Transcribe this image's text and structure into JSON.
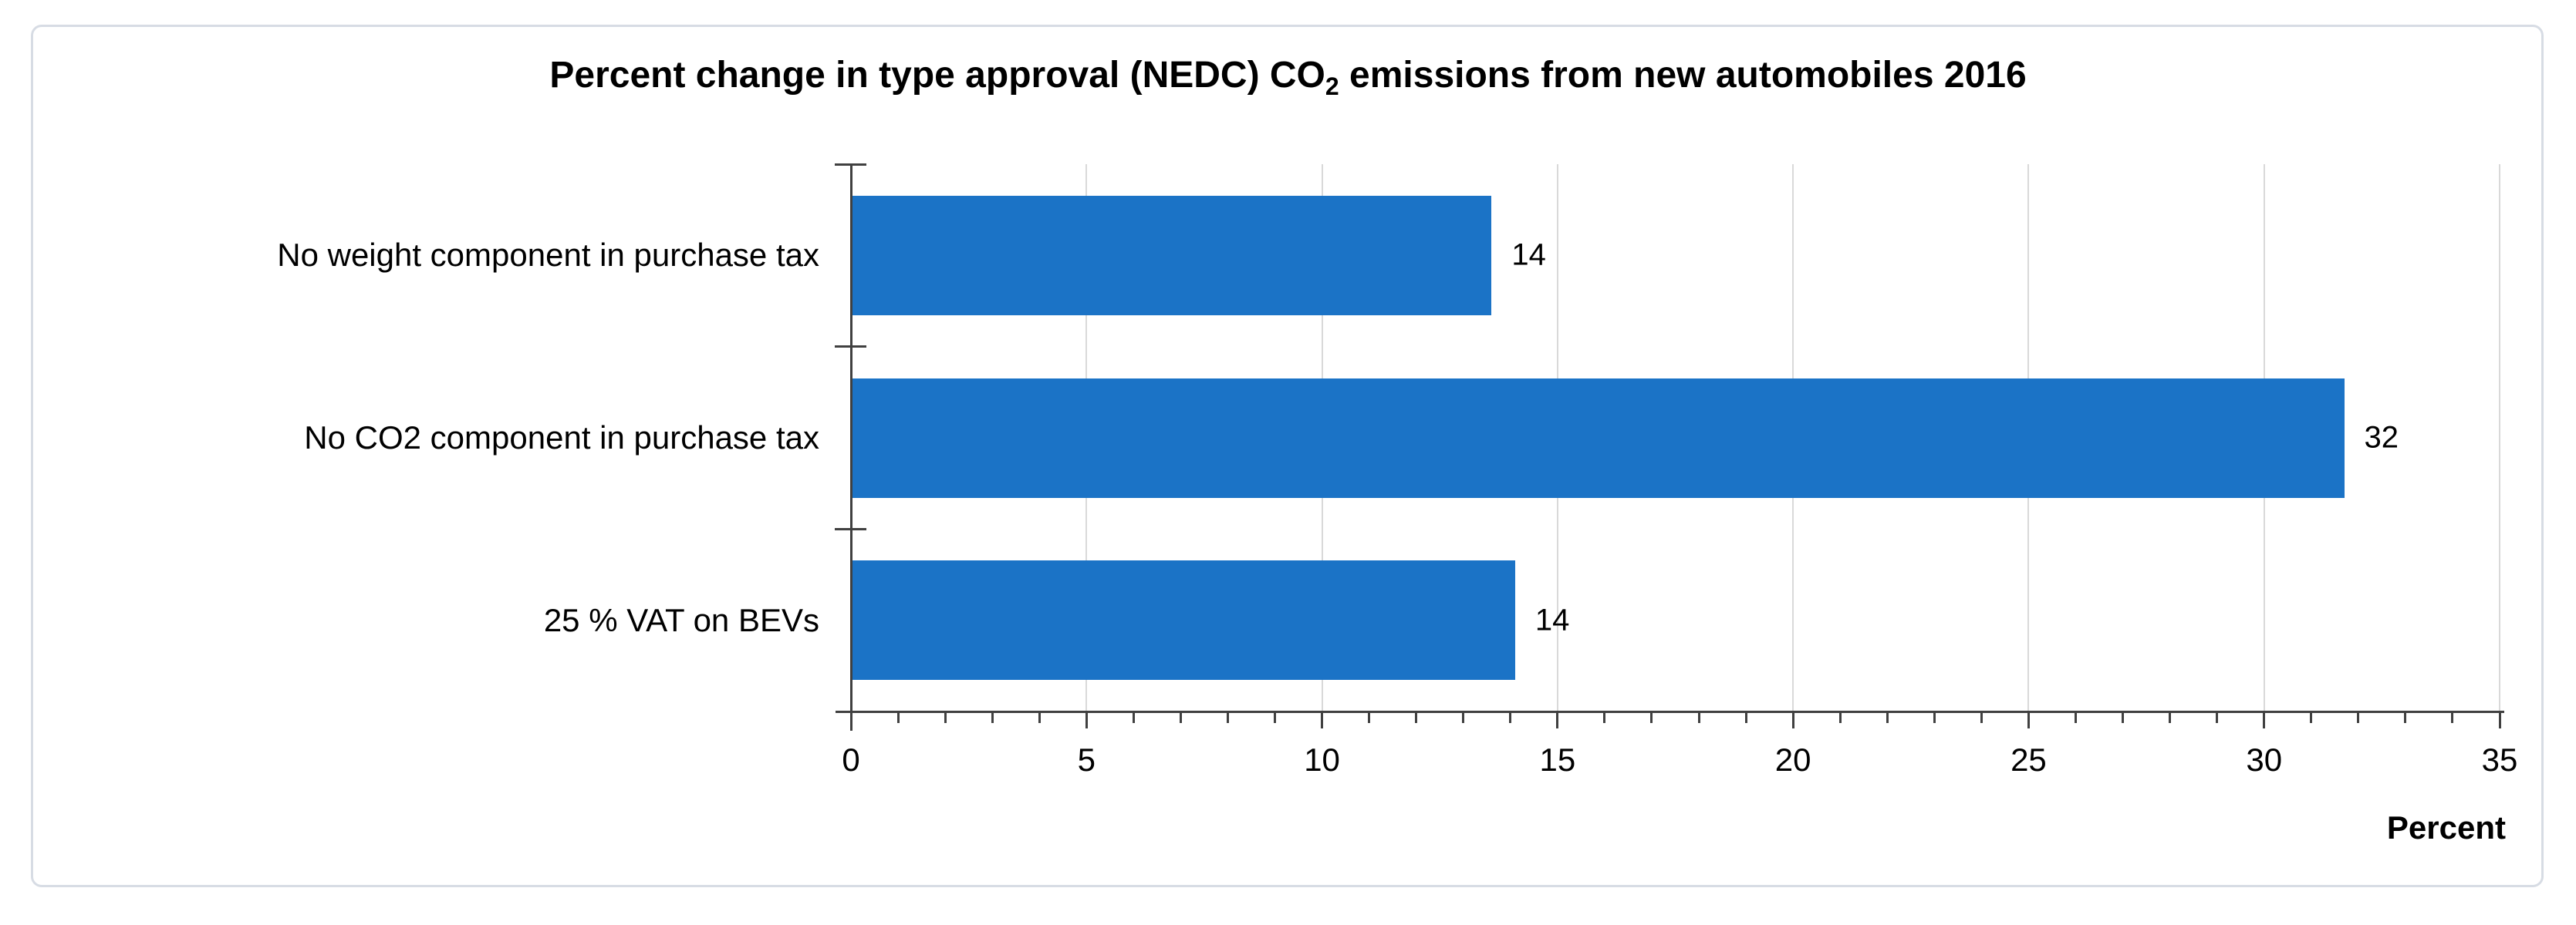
{
  "chart": {
    "title": {
      "prefix": "Percent change in type approval (NEDC) CO",
      "subscript": "2",
      "suffix": " emissions from new automobiles 2016"
    },
    "axis_label": "Percent"
  },
  "chart_data": {
    "type": "bar",
    "orientation": "horizontal",
    "title": "Percent change in type approval (NEDC) CO2 emissions from new automobiles 2016",
    "categories": [
      "No weight component in purchase tax",
      "No CO2 component in purchase tax",
      "25 % VAT on BEVs"
    ],
    "values": [
      14,
      32,
      14
    ],
    "values_precise": [
      13.6,
      31.7,
      14.1
    ],
    "data_labels": [
      "14",
      "32",
      "14"
    ],
    "xlabel": "Percent",
    "ylabel": "",
    "xlim": [
      0,
      35
    ],
    "x_major_ticks": [
      0,
      5,
      10,
      15,
      20,
      25,
      30,
      35
    ],
    "x_minor_tick_step": 1,
    "grid": "vertical-major-only",
    "legend_position": "none",
    "colors": {
      "bar": "#1B73C6",
      "gridline": "#D9D9D9",
      "axis": "#404040",
      "frame_border": "#D7DCE4",
      "text": "#000000",
      "background": "#FFFFFF"
    }
  }
}
